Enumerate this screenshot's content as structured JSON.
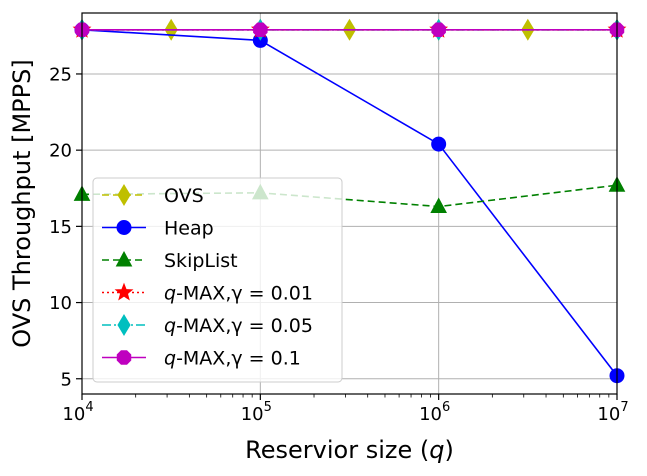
{
  "chart_data": {
    "type": "line",
    "xlabel_parts": [
      "Reservior size (",
      "q",
      ")"
    ],
    "ylabel": "OVS Throughput [MPPS]",
    "x_scale": "log",
    "xlim": [
      10000,
      10000000
    ],
    "ylim": [
      4,
      29
    ],
    "grid": true,
    "legend_placement": "lower-left",
    "x_ticks": [
      {
        "value": 10000,
        "base": "10",
        "exp": "4"
      },
      {
        "value": 100000,
        "base": "10",
        "exp": "5"
      },
      {
        "value": 1000000,
        "base": "10",
        "exp": "6"
      },
      {
        "value": 10000000,
        "base": "10",
        "exp": "7"
      }
    ],
    "y_ticks": [
      {
        "value": 5,
        "label": "5"
      },
      {
        "value": 10,
        "label": "10"
      },
      {
        "value": 15,
        "label": "15"
      },
      {
        "value": 20,
        "label": "20"
      },
      {
        "value": 25,
        "label": "25"
      }
    ],
    "series": [
      {
        "name": "OVS",
        "color": "#bfbf00",
        "dash": "dashed",
        "marker": "thin-diamond",
        "x": [
          10000,
          31623,
          100000,
          316228,
          1000000,
          3162278,
          10000000
        ],
        "y": [
          27.9,
          27.9,
          27.9,
          27.9,
          27.9,
          27.9,
          27.9
        ]
      },
      {
        "name": "Heap",
        "color": "#0000ff",
        "dash": "solid",
        "marker": "circle",
        "x": [
          10000,
          100000,
          1000000,
          10000000
        ],
        "y": [
          27.9,
          27.2,
          20.4,
          5.2
        ]
      },
      {
        "name": "SkipList",
        "color": "#008000",
        "dash": "dashed",
        "marker": "triangle",
        "x": [
          10000,
          100000,
          1000000,
          10000000
        ],
        "y": [
          17.1,
          17.2,
          16.3,
          17.7
        ]
      },
      {
        "name_prefix": "q",
        "name_suffix": "-MAX,γ = 0.01",
        "color": "#ff0000",
        "dash": "dotted",
        "marker": "star",
        "x": [
          10000,
          100000,
          1000000,
          10000000
        ],
        "y": [
          27.9,
          27.9,
          27.9,
          27.9
        ]
      },
      {
        "name_prefix": "q",
        "name_suffix": "-MAX,γ = 0.05",
        "color": "#00bfbf",
        "dash": "dashdot",
        "marker": "thin-diamond",
        "x": [
          10000,
          100000,
          1000000,
          10000000
        ],
        "y": [
          27.9,
          27.9,
          27.9,
          27.9
        ]
      },
      {
        "name_prefix": "q",
        "name_suffix": "-MAX,γ = 0.1",
        "color": "#bf00bf",
        "dash": "solid",
        "marker": "octagon",
        "x": [
          10000,
          100000,
          1000000,
          10000000
        ],
        "y": [
          27.9,
          27.9,
          27.9,
          27.9
        ]
      }
    ]
  }
}
